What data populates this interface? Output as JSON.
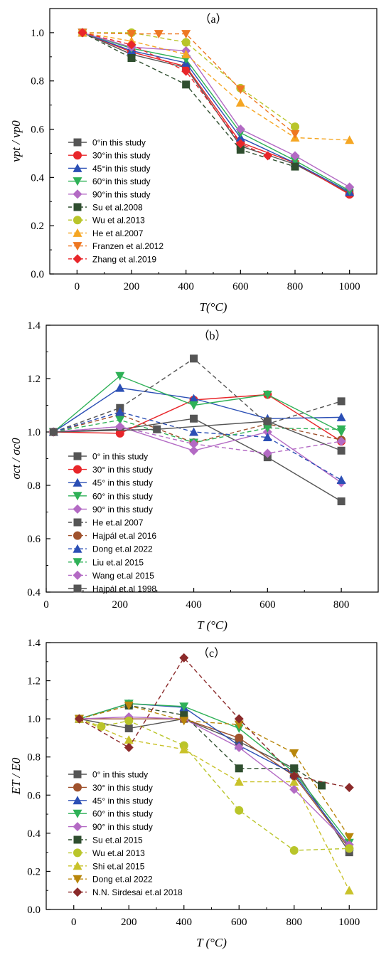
{
  "chart_data": [
    {
      "type": "line",
      "panel_label": "（a）",
      "xlabel": "T(°C)",
      "ylabel": "vpt / vp0",
      "xlim": [
        -100,
        1100
      ],
      "ylim": [
        0.0,
        1.1
      ],
      "xticks": [
        0,
        200,
        400,
        600,
        800,
        1000
      ],
      "yticks": [
        0.0,
        0.2,
        0.4,
        0.6,
        0.8,
        1.0
      ],
      "legend_position": "lower-left",
      "series": [
        {
          "name": "0°in this study",
          "color": "#555555",
          "marker": "square",
          "dash": false,
          "x": [
            20,
            200,
            400,
            600,
            800,
            1000
          ],
          "y": [
            1.0,
            0.91,
            0.855,
            0.53,
            0.455,
            0.335
          ]
        },
        {
          "name": "30°in this study",
          "color": "#e8262a",
          "marker": "circle",
          "dash": false,
          "x": [
            20,
            200,
            400,
            600,
            800,
            1000
          ],
          "y": [
            1.0,
            0.92,
            0.86,
            0.545,
            0.46,
            0.33
          ]
        },
        {
          "name": "45°in this study",
          "color": "#2b4fb5",
          "marker": "triangle-up",
          "dash": false,
          "x": [
            20,
            200,
            400,
            600,
            800,
            1000
          ],
          "y": [
            1.0,
            0.925,
            0.875,
            0.565,
            0.46,
            0.34
          ]
        },
        {
          "name": "60°in this study",
          "color": "#2fb157",
          "marker": "triangle-down",
          "dash": false,
          "x": [
            20,
            200,
            400,
            600,
            800,
            1000
          ],
          "y": [
            1.0,
            0.935,
            0.89,
            0.585,
            0.47,
            0.345
          ]
        },
        {
          "name": "90°in this study",
          "color": "#b36ac4",
          "marker": "diamond",
          "dash": false,
          "x": [
            20,
            200,
            400,
            600,
            800,
            1000
          ],
          "y": [
            1.0,
            0.94,
            0.925,
            0.6,
            0.49,
            0.36
          ]
        },
        {
          "name": "Su et al.2008",
          "color": "#2f4e2f",
          "marker": "square",
          "dash": true,
          "x": [
            20,
            200,
            400,
            600,
            800
          ],
          "y": [
            1.0,
            0.895,
            0.785,
            0.515,
            0.445
          ]
        },
        {
          "name": "Wu et al.2013",
          "color": "#b9c52a",
          "marker": "circle",
          "dash": true,
          "x": [
            20,
            200,
            400,
            600,
            800
          ],
          "y": [
            1.0,
            1.0,
            0.96,
            0.77,
            0.61
          ]
        },
        {
          "name": "He et al.2007",
          "color": "#f5a623",
          "marker": "triangle-up",
          "dash": true,
          "x": [
            20,
            200,
            400,
            600,
            800,
            1000
          ],
          "y": [
            1.0,
            0.965,
            0.91,
            0.71,
            0.565,
            0.555
          ]
        },
        {
          "name": "Franzen et al.2012",
          "color": "#ee7722",
          "marker": "triangle-down",
          "dash": true,
          "x": [
            20,
            200,
            300,
            400,
            600,
            800
          ],
          "y": [
            1.0,
            0.995,
            0.995,
            0.995,
            0.765,
            0.58
          ]
        },
        {
          "name": "Zhang et al.2019",
          "color": "#e8262a",
          "marker": "diamond",
          "dash": true,
          "x": [
            20,
            200,
            400,
            600,
            700
          ],
          "y": [
            1.0,
            0.95,
            0.84,
            0.54,
            0.49
          ]
        }
      ]
    },
    {
      "type": "line",
      "panel_label": "（b）",
      "xlabel": "T (°C)",
      "ylabel": "σct / σc0",
      "xlim": [
        0,
        900
      ],
      "ylim": [
        0.4,
        1.4
      ],
      "xticks": [
        0,
        200,
        400,
        600,
        800
      ],
      "yticks": [
        0.4,
        0.6,
        0.8,
        1.0,
        1.2,
        1.4
      ],
      "legend_position": "lower-left",
      "series": [
        {
          "name": "0° in this study",
          "color": "#555555",
          "marker": "square",
          "dash": false,
          "x": [
            20,
            200,
            400,
            600,
            800
          ],
          "y": [
            1.0,
            1.01,
            1.05,
            0.905,
            0.74
          ]
        },
        {
          "name": "30° in this study",
          "color": "#e8262a",
          "marker": "circle",
          "dash": false,
          "x": [
            20,
            200,
            400,
            600,
            800
          ],
          "y": [
            1.0,
            0.995,
            1.12,
            1.14,
            0.965
          ]
        },
        {
          "name": "45° in this study",
          "color": "#2b4fb5",
          "marker": "triangle-up",
          "dash": false,
          "x": [
            20,
            200,
            400,
            600,
            800
          ],
          "y": [
            1.0,
            1.165,
            1.125,
            1.05,
            1.055
          ]
        },
        {
          "name": "60° in this study",
          "color": "#2fb157",
          "marker": "triangle-down",
          "dash": false,
          "x": [
            20,
            200,
            400,
            600,
            800
          ],
          "y": [
            1.0,
            1.21,
            1.1,
            1.14,
            1.0
          ]
        },
        {
          "name": "90° in this study",
          "color": "#b36ac4",
          "marker": "diamond",
          "dash": false,
          "x": [
            20,
            200,
            400,
            600,
            800
          ],
          "y": [
            1.0,
            1.02,
            0.93,
            1.0,
            0.81
          ]
        },
        {
          "name": "He et.al 2007",
          "color": "#555555",
          "marker": "square",
          "dash": true,
          "x": [
            20,
            200,
            400,
            600,
            800
          ],
          "y": [
            1.0,
            1.09,
            1.275,
            1.03,
            1.115
          ]
        },
        {
          "name": "Hajpál et.al 2016",
          "color": "#a0522d",
          "marker": "circle",
          "dash": true,
          "x": [
            20,
            200,
            400,
            600,
            800
          ],
          "y": [
            1.0,
            1.065,
            0.96,
            1.03,
            0.97
          ]
        },
        {
          "name": "Dong et.al 2022",
          "color": "#2b4fb5",
          "marker": "triangle-up",
          "dash": true,
          "x": [
            20,
            200,
            400,
            600,
            800
          ],
          "y": [
            1.0,
            1.075,
            1.0,
            0.98,
            0.82
          ]
        },
        {
          "name": "Liu et.al 2015",
          "color": "#2fb157",
          "marker": "triangle-down",
          "dash": true,
          "x": [
            20,
            200,
            400,
            600,
            800
          ],
          "y": [
            1.0,
            1.045,
            0.96,
            1.015,
            1.01
          ]
        },
        {
          "name": "Wang et.al 2015",
          "color": "#b36ac4",
          "marker": "diamond",
          "dash": true,
          "x": [
            20,
            200,
            400,
            600,
            800
          ],
          "y": [
            1.0,
            1.02,
            0.955,
            0.92,
            0.965
          ]
        },
        {
          "name": "Hajpál et.al 1998",
          "color": "#555555",
          "marker": "square",
          "dash": false,
          "x": [
            20,
            300,
            600,
            800
          ],
          "y": [
            1.0,
            1.01,
            1.04,
            0.93
          ]
        }
      ]
    },
    {
      "type": "line",
      "panel_label": "（c）",
      "xlabel": "T (°C)",
      "ylabel": "ET / E0",
      "xlim": [
        -100,
        1100
      ],
      "ylim": [
        0.0,
        1.4
      ],
      "xticks": [
        0,
        200,
        400,
        600,
        800,
        1000
      ],
      "yticks": [
        0.0,
        0.2,
        0.4,
        0.6,
        0.8,
        1.0,
        1.2,
        1.4
      ],
      "legend_position": "lower-left",
      "series": [
        {
          "name": "0° in this study",
          "color": "#555555",
          "marker": "square",
          "dash": false,
          "x": [
            20,
            200,
            400,
            600,
            800,
            1000
          ],
          "y": [
            1.0,
            0.95,
            1.0,
            0.88,
            0.74,
            0.3
          ]
        },
        {
          "name": "30° in this study",
          "color": "#a0522d",
          "marker": "circle",
          "dash": false,
          "x": [
            20,
            200,
            400,
            600,
            800,
            1000
          ],
          "y": [
            1.0,
            1.0,
            1.0,
            0.9,
            0.7,
            0.32
          ]
        },
        {
          "name": "45° in this study",
          "color": "#2b4fb5",
          "marker": "triangle-up",
          "dash": false,
          "x": [
            20,
            200,
            400,
            600,
            800,
            1000
          ],
          "y": [
            1.0,
            1.08,
            1.06,
            0.86,
            0.71,
            0.33
          ]
        },
        {
          "name": "60° in this study",
          "color": "#2fb157",
          "marker": "triangle-down",
          "dash": false,
          "x": [
            20,
            200,
            400,
            600,
            800,
            1000
          ],
          "y": [
            1.0,
            1.08,
            1.065,
            0.95,
            0.72,
            0.35
          ]
        },
        {
          "name": "90° in this study",
          "color": "#b36ac4",
          "marker": "diamond",
          "dash": false,
          "x": [
            20,
            200,
            400,
            600,
            800,
            1000
          ],
          "y": [
            1.0,
            1.01,
            1.0,
            0.85,
            0.63,
            0.34
          ]
        },
        {
          "name": "Su et.al 2015",
          "color": "#2f4e2f",
          "marker": "square",
          "dash": true,
          "x": [
            20,
            200,
            400,
            600,
            800,
            900
          ],
          "y": [
            1.0,
            1.07,
            1.02,
            0.74,
            0.74,
            0.65
          ]
        },
        {
          "name": "Wu et.al 2013",
          "color": "#b9c52a",
          "marker": "circle",
          "dash": true,
          "x": [
            20,
            100,
            200,
            400,
            600,
            800,
            1000
          ],
          "y": [
            1.0,
            0.96,
            0.99,
            0.86,
            0.52,
            0.31,
            0.32
          ]
        },
        {
          "name": "Shi et.al 2015",
          "color": "#c9c22a",
          "marker": "triangle-up",
          "dash": true,
          "x": [
            20,
            200,
            400,
            600,
            800,
            1000
          ],
          "y": [
            1.0,
            0.89,
            0.84,
            0.67,
            0.67,
            0.1
          ]
        },
        {
          "name": "Dong et.al 2022",
          "color": "#b8860b",
          "marker": "triangle-down",
          "dash": true,
          "x": [
            20,
            200,
            400,
            600,
            800,
            1000
          ],
          "y": [
            1.0,
            1.07,
            0.99,
            0.97,
            0.82,
            0.38
          ]
        },
        {
          "name": "N.N. Sirdesai et.al 2018",
          "color": "#8b2a2a",
          "marker": "diamond",
          "dash": true,
          "x": [
            20,
            200,
            400,
            600,
            800,
            1000
          ],
          "y": [
            1.0,
            0.85,
            1.32,
            1.0,
            0.7,
            0.64
          ]
        }
      ]
    }
  ]
}
